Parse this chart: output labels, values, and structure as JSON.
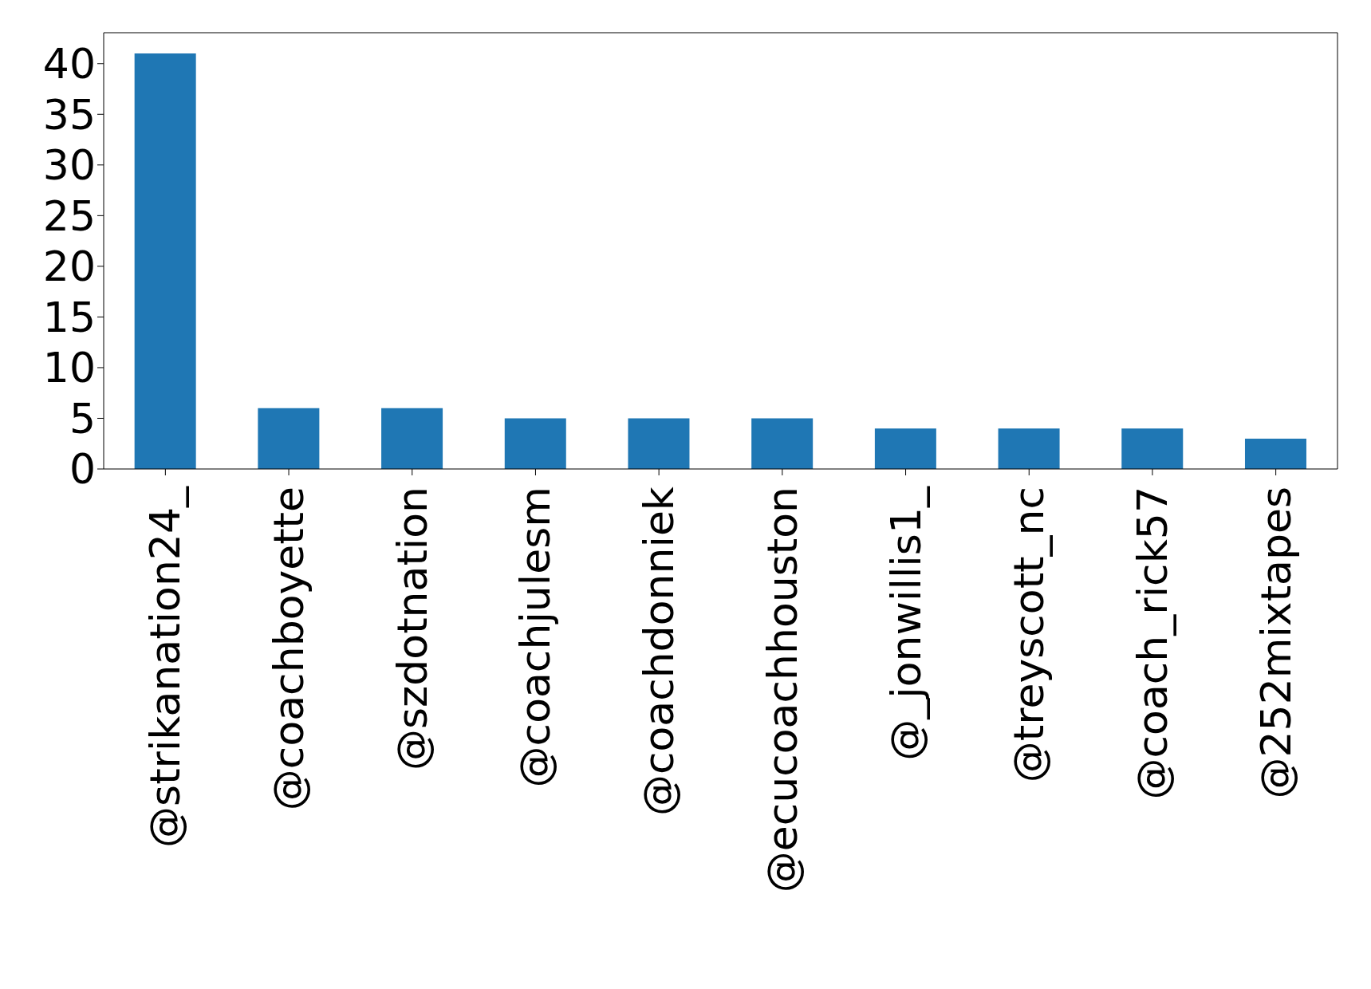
{
  "chart_data": {
    "type": "bar",
    "categories": [
      "@strikanation24_",
      "@coachboyette",
      "@szdotnation",
      "@coachjulesm",
      "@coachdonniek",
      "@ecucoachhouston",
      "@_jonwillis1_",
      "@treyscott_nc",
      "@coach_rick57",
      "@252mixtapes"
    ],
    "values": [
      41,
      6,
      6,
      5,
      5,
      5,
      4,
      4,
      4,
      3
    ],
    "color": "#1f77b4",
    "ylim": [
      0,
      43.05
    ],
    "yticks": [
      0,
      5,
      10,
      15,
      20,
      25,
      30,
      35,
      40
    ],
    "grid": false,
    "legend": false
  }
}
